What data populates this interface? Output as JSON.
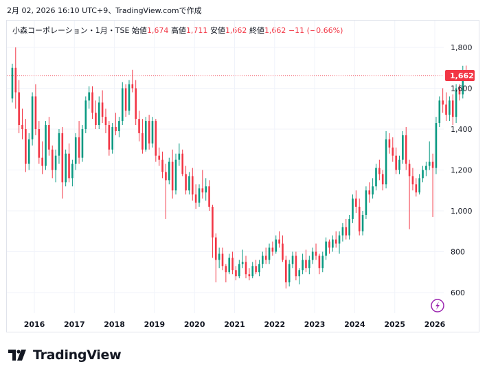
{
  "header": {
    "created": "2月 02, 2026 16:10 UTC+9、TradingView.comで作成"
  },
  "legend": {
    "symbol": "小森コーポレーション・1月・TSE",
    "open_label": "始値",
    "open": "1,674",
    "high_label": "高値",
    "high": "1,711",
    "low_label": "安値",
    "low": "1,662",
    "close_label": "終値",
    "close": "1,662",
    "change": "−11 (−0.66%)"
  },
  "last_price_label": "1,662",
  "logo_text": "TradingView",
  "colors": {
    "up": "#089981",
    "down": "#f23645",
    "grid": "#f0f3fa",
    "text": "#131722"
  },
  "chart_data": {
    "type": "candlestick",
    "timeframe": "monthly",
    "ylim": [
      500,
      1880
    ],
    "y_ticks": [
      600,
      800,
      1000,
      1200,
      1400,
      1600,
      1800
    ],
    "y_tick_labels": [
      "600",
      "800",
      "1,000",
      "1,200",
      "1,400",
      "1,600",
      "1,800"
    ],
    "x_ticks": [
      2016,
      2017,
      2018,
      2019,
      2020,
      2021,
      2022,
      2023,
      2024,
      2025,
      2026
    ],
    "x_tick_labels": [
      "2016",
      "2017",
      "2018",
      "2019",
      "2020",
      "2021",
      "2022",
      "2023",
      "2024",
      "2025",
      "2026"
    ],
    "x_start": 2015.45,
    "last_price": 1662,
    "candles": [
      [
        1550,
        1720,
        1530,
        1700
      ],
      [
        1700,
        1800,
        1500,
        1580
      ],
      [
        1580,
        1640,
        1380,
        1420
      ],
      [
        1420,
        1500,
        1350,
        1400
      ],
      [
        1400,
        1450,
        1190,
        1230
      ],
      [
        1230,
        1380,
        1200,
        1350
      ],
      [
        1350,
        1580,
        1320,
        1560
      ],
      [
        1560,
        1620,
        1370,
        1400
      ],
      [
        1400,
        1440,
        1230,
        1260
      ],
      [
        1260,
        1340,
        1180,
        1220
      ],
      [
        1220,
        1440,
        1200,
        1420
      ],
      [
        1420,
        1460,
        1270,
        1300
      ],
      [
        1300,
        1320,
        1160,
        1200
      ],
      [
        1200,
        1300,
        1140,
        1270
      ],
      [
        1270,
        1400,
        1230,
        1380
      ],
      [
        1380,
        1410,
        1060,
        1140
      ],
      [
        1140,
        1300,
        1120,
        1280
      ],
      [
        1280,
        1330,
        1140,
        1160
      ],
      [
        1160,
        1250,
        1120,
        1230
      ],
      [
        1230,
        1380,
        1200,
        1360
      ],
      [
        1360,
        1440,
        1230,
        1260
      ],
      [
        1260,
        1420,
        1240,
        1400
      ],
      [
        1400,
        1560,
        1380,
        1540
      ],
      [
        1540,
        1610,
        1500,
        1580
      ],
      [
        1580,
        1610,
        1450,
        1480
      ],
      [
        1480,
        1540,
        1400,
        1420
      ],
      [
        1420,
        1560,
        1400,
        1530
      ],
      [
        1530,
        1590,
        1430,
        1460
      ],
      [
        1460,
        1500,
        1380,
        1420
      ],
      [
        1420,
        1440,
        1270,
        1300
      ],
      [
        1300,
        1430,
        1280,
        1410
      ],
      [
        1410,
        1480,
        1370,
        1390
      ],
      [
        1390,
        1460,
        1360,
        1440
      ],
      [
        1440,
        1630,
        1420,
        1600
      ],
      [
        1600,
        1620,
        1460,
        1490
      ],
      [
        1490,
        1640,
        1470,
        1620
      ],
      [
        1620,
        1690,
        1580,
        1600
      ],
      [
        1600,
        1640,
        1420,
        1450
      ],
      [
        1450,
        1490,
        1340,
        1380
      ],
      [
        1380,
        1450,
        1280,
        1300
      ],
      [
        1300,
        1460,
        1290,
        1440
      ],
      [
        1440,
        1470,
        1300,
        1330
      ],
      [
        1330,
        1460,
        1310,
        1440
      ],
      [
        1440,
        1450,
        1240,
        1270
      ],
      [
        1270,
        1310,
        1220,
        1250
      ],
      [
        1250,
        1290,
        1160,
        1190
      ],
      [
        1190,
        1230,
        960,
        1150
      ],
      [
        1150,
        1260,
        1130,
        1240
      ],
      [
        1240,
        1300,
        1060,
        1100
      ],
      [
        1100,
        1280,
        1080,
        1250
      ],
      [
        1250,
        1330,
        1220,
        1280
      ],
      [
        1280,
        1300,
        1170,
        1180
      ],
      [
        1180,
        1220,
        1080,
        1100
      ],
      [
        1100,
        1190,
        1080,
        1170
      ],
      [
        1170,
        1210,
        1050,
        1080
      ],
      [
        1080,
        1130,
        1010,
        1040
      ],
      [
        1040,
        1130,
        1020,
        1110
      ],
      [
        1110,
        1200,
        1060,
        1090
      ],
      [
        1090,
        1160,
        1050,
        1120
      ],
      [
        1120,
        1150,
        1000,
        1020
      ],
      [
        1020,
        1030,
        770,
        870
      ],
      [
        870,
        890,
        650,
        760
      ],
      [
        760,
        820,
        720,
        790
      ],
      [
        790,
        820,
        710,
        730
      ],
      [
        730,
        740,
        650,
        700
      ],
      [
        700,
        790,
        690,
        770
      ],
      [
        770,
        800,
        690,
        710
      ],
      [
        710,
        730,
        660,
        680
      ],
      [
        680,
        760,
        670,
        740
      ],
      [
        740,
        810,
        720,
        750
      ],
      [
        750,
        780,
        670,
        690
      ],
      [
        690,
        720,
        660,
        680
      ],
      [
        680,
        750,
        670,
        730
      ],
      [
        730,
        760,
        690,
        700
      ],
      [
        700,
        760,
        680,
        740
      ],
      [
        740,
        800,
        720,
        780
      ],
      [
        780,
        820,
        740,
        760
      ],
      [
        760,
        840,
        740,
        820
      ],
      [
        820,
        850,
        780,
        800
      ],
      [
        800,
        880,
        790,
        860
      ],
      [
        860,
        900,
        820,
        840
      ],
      [
        840,
        880,
        750,
        760
      ],
      [
        760,
        780,
        620,
        650
      ],
      [
        650,
        760,
        630,
        740
      ],
      [
        740,
        800,
        720,
        780
      ],
      [
        780,
        800,
        660,
        680
      ],
      [
        680,
        720,
        640,
        710
      ],
      [
        710,
        790,
        690,
        760
      ],
      [
        760,
        810,
        700,
        720
      ],
      [
        720,
        780,
        690,
        760
      ],
      [
        760,
        820,
        740,
        800
      ],
      [
        800,
        840,
        760,
        780
      ],
      [
        780,
        790,
        690,
        720
      ],
      [
        720,
        800,
        700,
        780
      ],
      [
        780,
        870,
        760,
        850
      ],
      [
        850,
        860,
        790,
        820
      ],
      [
        820,
        880,
        800,
        860
      ],
      [
        860,
        900,
        820,
        840
      ],
      [
        840,
        900,
        790,
        880
      ],
      [
        880,
        940,
        850,
        920
      ],
      [
        920,
        960,
        860,
        880
      ],
      [
        880,
        980,
        860,
        960
      ],
      [
        960,
        1080,
        940,
        1060
      ],
      [
        1060,
        1100,
        990,
        1020
      ],
      [
        1020,
        1060,
        880,
        900
      ],
      [
        900,
        1000,
        880,
        980
      ],
      [
        980,
        1120,
        960,
        1100
      ],
      [
        1100,
        1140,
        1040,
        1080
      ],
      [
        1080,
        1160,
        1060,
        1120
      ],
      [
        1120,
        1230,
        1100,
        1210
      ],
      [
        1210,
        1250,
        1150,
        1180
      ],
      [
        1180,
        1200,
        1100,
        1130
      ],
      [
        1130,
        1390,
        1110,
        1350
      ],
      [
        1350,
        1380,
        1280,
        1310
      ],
      [
        1310,
        1360,
        1240,
        1270
      ],
      [
        1270,
        1310,
        1180,
        1200
      ],
      [
        1200,
        1270,
        1180,
        1250
      ],
      [
        1250,
        1390,
        1230,
        1370
      ],
      [
        1370,
        1410,
        1200,
        1230
      ],
      [
        1230,
        1250,
        910,
        1170
      ],
      [
        1170,
        1210,
        1100,
        1130
      ],
      [
        1130,
        1160,
        1070,
        1090
      ],
      [
        1090,
        1180,
        1080,
        1160
      ],
      [
        1160,
        1220,
        1140,
        1200
      ],
      [
        1200,
        1240,
        1170,
        1220
      ],
      [
        1220,
        1340,
        1200,
        1240
      ],
      [
        1240,
        1280,
        970,
        1210
      ],
      [
        1210,
        1460,
        1180,
        1430
      ],
      [
        1430,
        1560,
        1410,
        1540
      ],
      [
        1540,
        1600,
        1480,
        1520
      ],
      [
        1520,
        1580,
        1440,
        1470
      ],
      [
        1470,
        1560,
        1440,
        1540
      ],
      [
        1540,
        1570,
        1420,
        1460
      ],
      [
        1460,
        1620,
        1430,
        1600
      ],
      [
        1600,
        1620,
        1540,
        1570
      ],
      [
        1570,
        1710,
        1550,
        1674
      ],
      [
        1674,
        1711,
        1662,
        1662
      ]
    ]
  }
}
